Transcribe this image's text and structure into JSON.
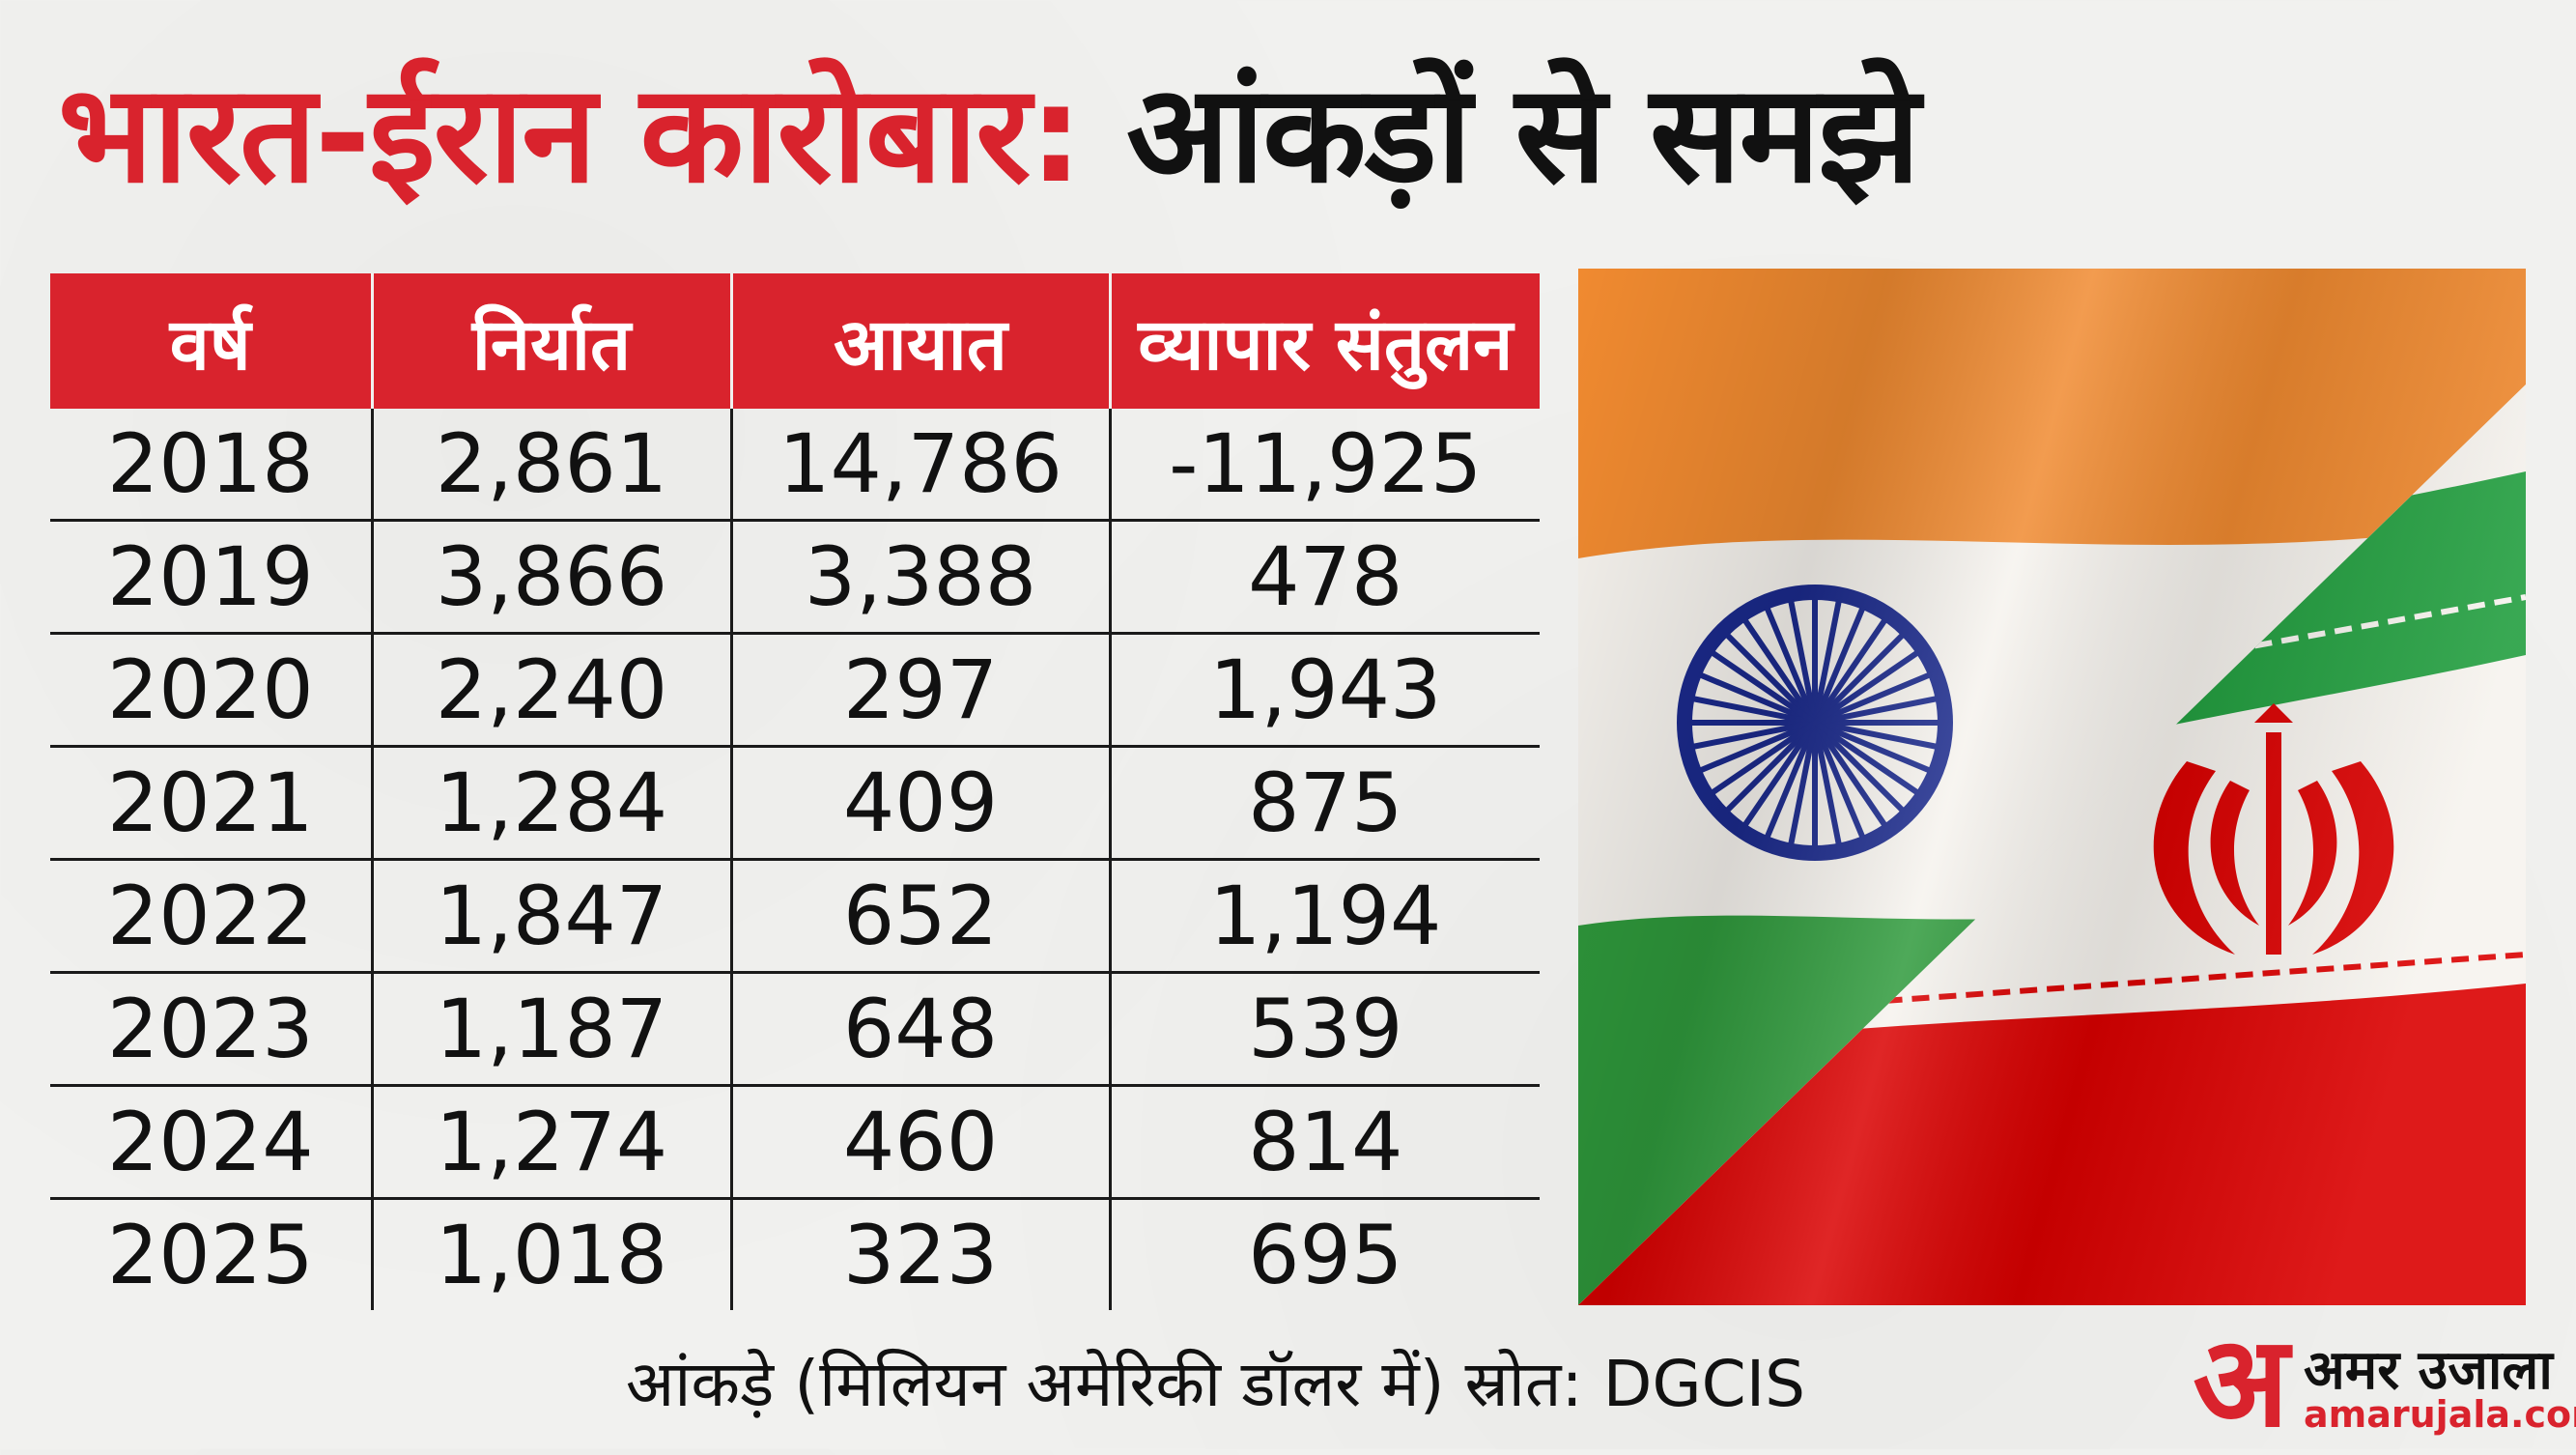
{
  "title": {
    "part1": "भारत-ईरान कारोबार:",
    "part2": "आंकड़ों से समझे"
  },
  "chart_data": {
    "type": "table",
    "columns": [
      "वर्ष",
      "निर्यात",
      "आयात",
      "व्यापार संतुलन"
    ],
    "rows": [
      [
        "2018",
        "2,861",
        "14,786",
        "-11,925"
      ],
      [
        "2019",
        "3,866",
        "3,388",
        "478"
      ],
      [
        "2020",
        "2,240",
        "297",
        "1,943"
      ],
      [
        "2021",
        "1,284",
        "409",
        "875"
      ],
      [
        "2022",
        "1,847",
        "652",
        "1,194"
      ],
      [
        "2023",
        "1,187",
        "648",
        "539"
      ],
      [
        "2024",
        "1,274",
        "460",
        "814"
      ],
      [
        "2025",
        "1,018",
        "323",
        "695"
      ]
    ]
  },
  "source": "आंकड़े (मिलियन अमेरिकी डॉलर में) स्रोत: DGCIS",
  "logo": {
    "mark": "अ",
    "hindi": "अमर उजाला",
    "latin": "amarujala.com"
  },
  "colors": {
    "accent": "#d9232d",
    "saffron": "#f08a30",
    "india_green": "#2f9a3c",
    "iran_green": "#239f40",
    "iran_red": "#da0000",
    "chakra_blue": "#1b2a8c"
  }
}
